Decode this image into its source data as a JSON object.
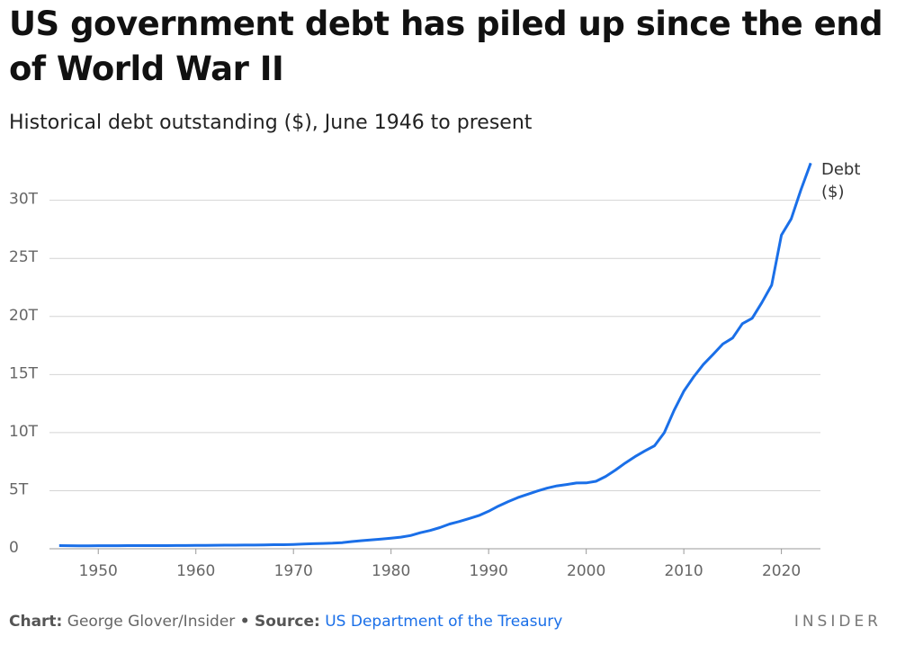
{
  "chart_data": {
    "type": "line",
    "title": "US government debt has piled up since the end of World War II",
    "subtitle": "Historical debt outstanding ($), June 1946 to present",
    "x": [
      1946,
      1947,
      1948,
      1949,
      1950,
      1951,
      1952,
      1953,
      1954,
      1955,
      1956,
      1957,
      1958,
      1959,
      1960,
      1961,
      1962,
      1963,
      1964,
      1965,
      1966,
      1967,
      1968,
      1969,
      1970,
      1971,
      1972,
      1973,
      1974,
      1975,
      1976,
      1977,
      1978,
      1979,
      1980,
      1981,
      1982,
      1983,
      1984,
      1985,
      1986,
      1987,
      1988,
      1989,
      1990,
      1991,
      1992,
      1993,
      1994,
      1995,
      1996,
      1997,
      1998,
      1999,
      2000,
      2001,
      2002,
      2003,
      2004,
      2005,
      2006,
      2007,
      2008,
      2009,
      2010,
      2011,
      2012,
      2013,
      2014,
      2015,
      2016,
      2017,
      2018,
      2019,
      2020,
      2021,
      2022,
      2023
    ],
    "series": [
      {
        "name": "Debt ($)",
        "color": "#1a6fe8",
        "values": [
          0.27,
          0.26,
          0.25,
          0.25,
          0.26,
          0.26,
          0.26,
          0.27,
          0.27,
          0.27,
          0.27,
          0.27,
          0.28,
          0.28,
          0.29,
          0.29,
          0.3,
          0.31,
          0.31,
          0.32,
          0.32,
          0.33,
          0.35,
          0.35,
          0.37,
          0.4,
          0.43,
          0.46,
          0.48,
          0.53,
          0.62,
          0.7,
          0.77,
          0.83,
          0.91,
          1.0,
          1.14,
          1.38,
          1.57,
          1.82,
          2.13,
          2.35,
          2.6,
          2.86,
          3.23,
          3.67,
          4.06,
          4.41,
          4.69,
          4.97,
          5.22,
          5.41,
          5.53,
          5.66,
          5.67,
          5.81,
          6.23,
          6.78,
          7.38,
          7.93,
          8.42,
          8.87,
          9.99,
          11.91,
          13.56,
          14.79,
          15.86,
          16.74,
          17.63,
          18.15,
          19.38,
          19.84,
          21.2,
          22.7,
          27.0,
          28.4,
          30.9,
          33.2
        ]
      }
    ],
    "xlim": [
      1945,
      2024
    ],
    "xticks": [
      1950,
      1960,
      1970,
      1980,
      1990,
      2000,
      2010,
      2020
    ],
    "ylim": [
      0,
      34
    ],
    "yticks": [
      0,
      {
        "value": 5,
        "label": "5T"
      },
      {
        "value": 10,
        "label": "10T"
      },
      {
        "value": 15,
        "label": "15T"
      },
      {
        "value": 20,
        "label": "20T"
      },
      {
        "value": 25,
        "label": "25T"
      },
      {
        "value": 30,
        "label": "30T"
      }
    ],
    "grid": true
  },
  "footer": {
    "chart_label": "Chart:",
    "chart_credit": "George Glover/Insider",
    "separator": "•",
    "source_label": "Source:",
    "source": "US Department of the Treasury",
    "brand": "INSIDER"
  }
}
